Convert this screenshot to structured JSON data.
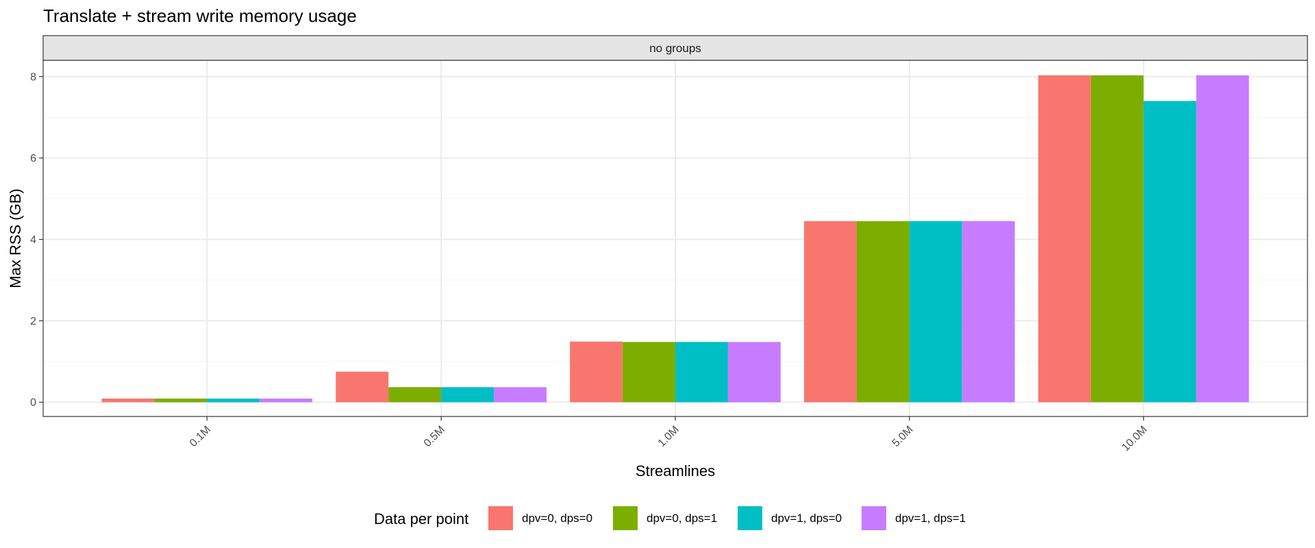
{
  "chart_data": {
    "type": "bar",
    "title": "Translate + stream write memory usage",
    "facet_label": "no groups",
    "xlabel": "Streamlines",
    "ylabel": "Max RSS (GB)",
    "categories": [
      "0.1M",
      "0.5M",
      "1.0M",
      "5.0M",
      "10.0M"
    ],
    "y_ticks": [
      0,
      2,
      4,
      6,
      8
    ],
    "ylim": [
      -0.35,
      8.4
    ],
    "grid": true,
    "legend_title": "Data per point",
    "legend_position": "bottom",
    "series": [
      {
        "name": "dpv=0, dps=0",
        "color": "#F8766D",
        "values": [
          0.09,
          0.75,
          1.49,
          4.45,
          8.03
        ]
      },
      {
        "name": "dpv=0, dps=1",
        "color": "#7CAE00",
        "values": [
          0.09,
          0.37,
          1.48,
          4.45,
          8.03
        ]
      },
      {
        "name": "dpv=1, dps=0",
        "color": "#00BFC4",
        "values": [
          0.09,
          0.37,
          1.48,
          4.45,
          7.4
        ]
      },
      {
        "name": "dpv=1, dps=1",
        "color": "#C77CFF",
        "values": [
          0.09,
          0.37,
          1.48,
          4.45,
          8.03
        ]
      }
    ]
  }
}
